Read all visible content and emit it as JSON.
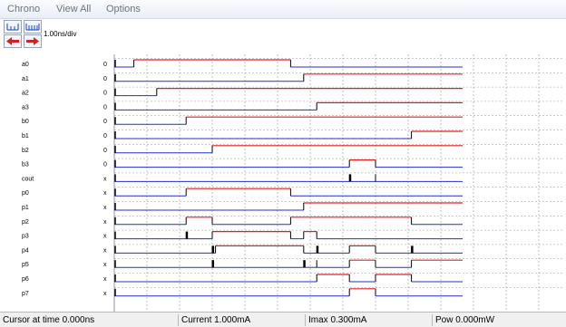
{
  "menu": {
    "items": [
      "Chrono",
      "View All",
      "Options"
    ]
  },
  "toolbar": {
    "zoom_in_icon": "zoom-in-ticks-icon",
    "zoom_out_icon": "zoom-out-ticks-icon",
    "left_icon": "arrow-left-icon",
    "right_icon": "arrow-right-icon",
    "time_scale": "1.00ns/div"
  },
  "colors": {
    "high": "#e02020",
    "low": "#2030c8",
    "edge": "#000000",
    "grid": "#9a9a9a"
  },
  "signals": [
    {
      "name": "a0",
      "value": "0",
      "pattern": [
        [
          0,
          "L"
        ],
        [
          0.6,
          "H"
        ],
        [
          5.4,
          "L"
        ]
      ]
    },
    {
      "name": "a1",
      "value": "0",
      "pattern": [
        [
          0,
          "L"
        ],
        [
          5.8,
          "H"
        ]
      ]
    },
    {
      "name": "a2",
      "value": "0",
      "pattern": [
        [
          0,
          "L"
        ],
        [
          1.3,
          "H"
        ]
      ]
    },
    {
      "name": "a3",
      "value": "0",
      "pattern": [
        [
          0,
          "L"
        ],
        [
          6.2,
          "H"
        ]
      ]
    },
    {
      "name": "b0",
      "value": "0",
      "pattern": [
        [
          0,
          "L"
        ],
        [
          2.2,
          "H"
        ]
      ]
    },
    {
      "name": "b1",
      "value": "0",
      "pattern": [
        [
          0,
          "L"
        ],
        [
          9.1,
          "H"
        ]
      ]
    },
    {
      "name": "b2",
      "value": "0",
      "pattern": [
        [
          0,
          "L"
        ],
        [
          3.0,
          "H"
        ]
      ]
    },
    {
      "name": "b3",
      "value": "0",
      "pattern": [
        [
          0,
          "L"
        ],
        [
          7.2,
          "H"
        ],
        [
          8.0,
          "L"
        ]
      ]
    },
    {
      "name": "cout",
      "value": "x",
      "pattern": [
        [
          0,
          "L"
        ],
        [
          7.2,
          "G"
        ],
        [
          8.0,
          "L"
        ]
      ]
    },
    {
      "name": "p0",
      "value": "x",
      "pattern": [
        [
          0,
          "L"
        ],
        [
          2.2,
          "H"
        ],
        [
          5.4,
          "L"
        ]
      ]
    },
    {
      "name": "p1",
      "value": "x",
      "pattern": [
        [
          0,
          "L"
        ],
        [
          5.8,
          "H"
        ]
      ]
    },
    {
      "name": "p2",
      "value": "x",
      "pattern": [
        [
          0,
          "L"
        ],
        [
          2.2,
          "H"
        ],
        [
          3.0,
          "L"
        ],
        [
          5.4,
          "H"
        ],
        [
          9.1,
          "L"
        ]
      ]
    },
    {
      "name": "p3",
      "value": "x",
      "pattern": [
        [
          0,
          "L"
        ],
        [
          2.2,
          "G"
        ],
        [
          3.0,
          "H"
        ],
        [
          5.4,
          "L"
        ],
        [
          5.8,
          "H"
        ],
        [
          6.2,
          "L"
        ]
      ]
    },
    {
      "name": "p4",
      "value": "x",
      "pattern": [
        [
          0,
          "L"
        ],
        [
          3.0,
          "G"
        ],
        [
          3.1,
          "H"
        ],
        [
          5.8,
          "L"
        ],
        [
          6.2,
          "G"
        ],
        [
          7.2,
          "H"
        ],
        [
          8.0,
          "L"
        ],
        [
          9.1,
          "G"
        ]
      ]
    },
    {
      "name": "p5",
      "value": "x",
      "pattern": [
        [
          0,
          "L"
        ],
        [
          3.0,
          "G"
        ],
        [
          5.8,
          "G"
        ],
        [
          6.2,
          "L"
        ],
        [
          7.2,
          "H"
        ],
        [
          8.0,
          "L"
        ],
        [
          9.1,
          "H"
        ]
      ]
    },
    {
      "name": "p6",
      "value": "x",
      "pattern": [
        [
          0,
          "L"
        ],
        [
          6.2,
          "H"
        ],
        [
          7.2,
          "L"
        ],
        [
          8.0,
          "H"
        ],
        [
          9.1,
          "L"
        ]
      ]
    },
    {
      "name": "p7",
      "value": "x",
      "pattern": [
        [
          0,
          "L"
        ],
        [
          7.2,
          "H"
        ],
        [
          8.0,
          "L"
        ]
      ]
    }
  ],
  "status": {
    "cursor": "Cursor at time 0.000ns",
    "current": "Current 1.000mA",
    "imax": "Imax 0.300mA",
    "pow": "Pow 0.000mW"
  }
}
